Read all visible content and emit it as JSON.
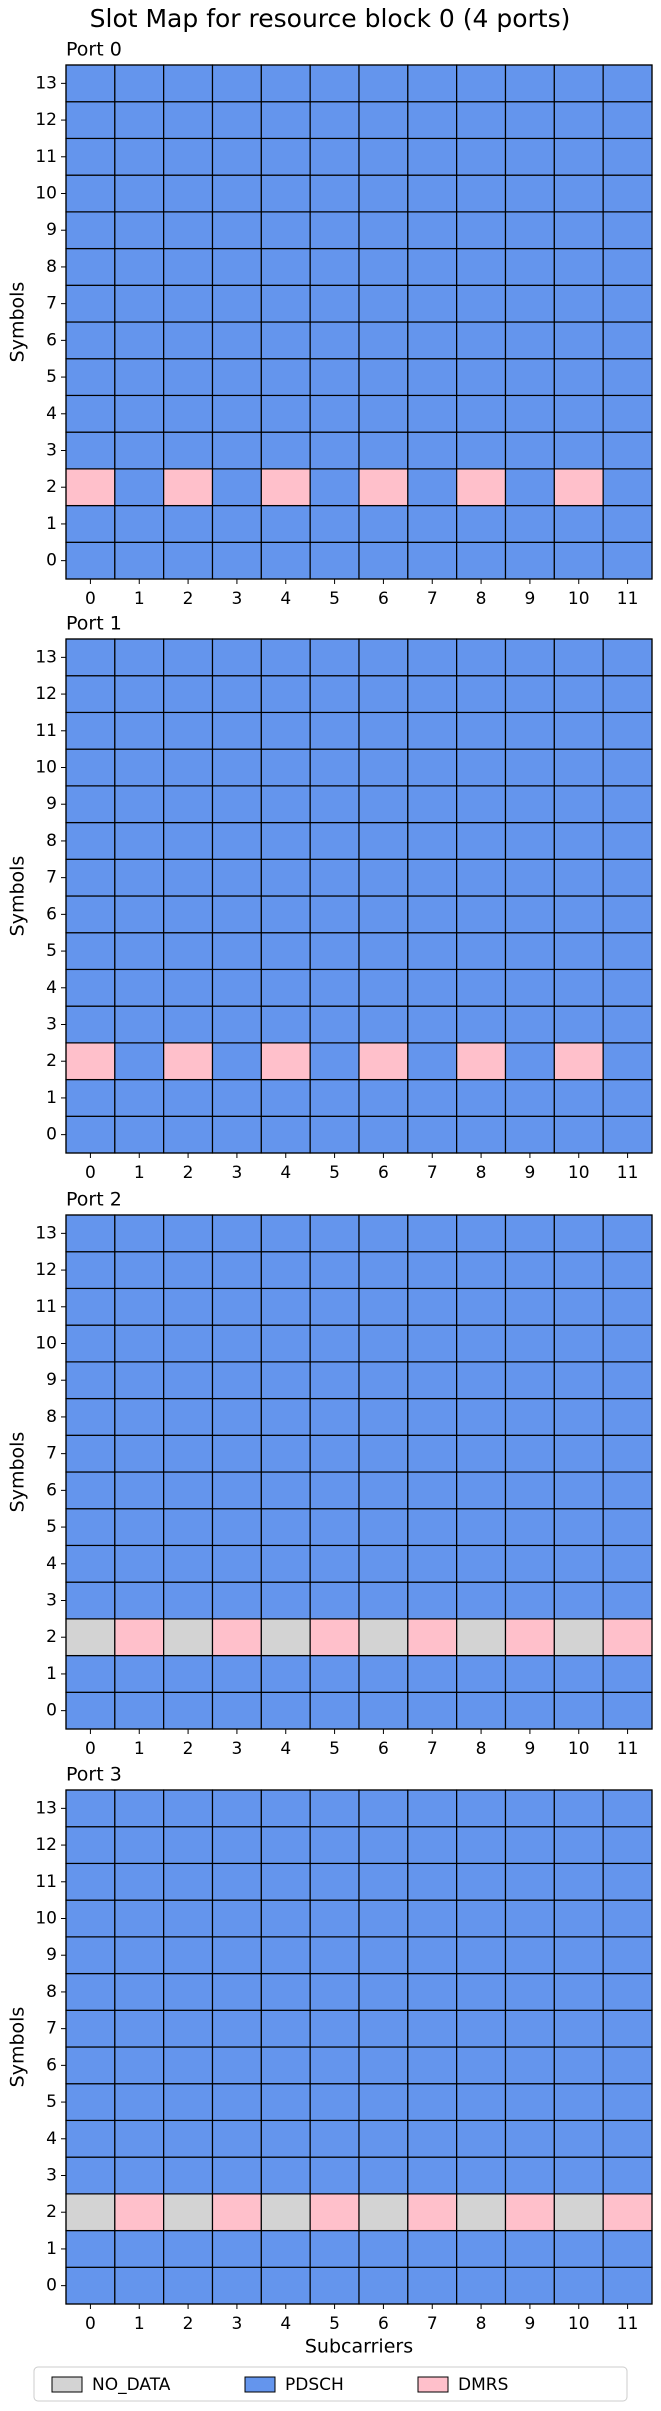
{
  "chart_data": {
    "type": "grid",
    "title": "Slot Map for resource block 0 (4 ports)",
    "xlabel": "Subcarriers",
    "ylabel": "Symbols",
    "xlim": [
      -0.5,
      11.5
    ],
    "ylim": [
      -0.5,
      13.5
    ],
    "xticks": [
      0,
      1,
      2,
      3,
      4,
      5,
      6,
      7,
      8,
      9,
      10,
      11
    ],
    "yticks": [
      0,
      1,
      2,
      3,
      4,
      5,
      6,
      7,
      8,
      9,
      10,
      11,
      12,
      13
    ],
    "legend_position": "lower center",
    "legend": [
      {
        "name": "NO_DATA",
        "color": "#d3d3d3"
      },
      {
        "name": "PDSCH",
        "color": "#6495ed"
      },
      {
        "name": "DMRS",
        "color": "#ffc0cb"
      }
    ],
    "panels": [
      {
        "title": "Port 0",
        "cells": [
          [
            1,
            1,
            1,
            1,
            1,
            1,
            1,
            1,
            1,
            1,
            1,
            1
          ],
          [
            1,
            1,
            1,
            1,
            1,
            1,
            1,
            1,
            1,
            1,
            1,
            1
          ],
          [
            2,
            1,
            2,
            1,
            2,
            1,
            2,
            1,
            2,
            1,
            2,
            1
          ],
          [
            1,
            1,
            1,
            1,
            1,
            1,
            1,
            1,
            1,
            1,
            1,
            1
          ],
          [
            1,
            1,
            1,
            1,
            1,
            1,
            1,
            1,
            1,
            1,
            1,
            1
          ],
          [
            1,
            1,
            1,
            1,
            1,
            1,
            1,
            1,
            1,
            1,
            1,
            1
          ],
          [
            1,
            1,
            1,
            1,
            1,
            1,
            1,
            1,
            1,
            1,
            1,
            1
          ],
          [
            1,
            1,
            1,
            1,
            1,
            1,
            1,
            1,
            1,
            1,
            1,
            1
          ],
          [
            1,
            1,
            1,
            1,
            1,
            1,
            1,
            1,
            1,
            1,
            1,
            1
          ],
          [
            1,
            1,
            1,
            1,
            1,
            1,
            1,
            1,
            1,
            1,
            1,
            1
          ],
          [
            1,
            1,
            1,
            1,
            1,
            1,
            1,
            1,
            1,
            1,
            1,
            1
          ],
          [
            1,
            1,
            1,
            1,
            1,
            1,
            1,
            1,
            1,
            1,
            1,
            1
          ],
          [
            1,
            1,
            1,
            1,
            1,
            1,
            1,
            1,
            1,
            1,
            1,
            1
          ],
          [
            1,
            1,
            1,
            1,
            1,
            1,
            1,
            1,
            1,
            1,
            1,
            1
          ]
        ]
      },
      {
        "title": "Port 1",
        "cells": [
          [
            1,
            1,
            1,
            1,
            1,
            1,
            1,
            1,
            1,
            1,
            1,
            1
          ],
          [
            1,
            1,
            1,
            1,
            1,
            1,
            1,
            1,
            1,
            1,
            1,
            1
          ],
          [
            2,
            1,
            2,
            1,
            2,
            1,
            2,
            1,
            2,
            1,
            2,
            1
          ],
          [
            1,
            1,
            1,
            1,
            1,
            1,
            1,
            1,
            1,
            1,
            1,
            1
          ],
          [
            1,
            1,
            1,
            1,
            1,
            1,
            1,
            1,
            1,
            1,
            1,
            1
          ],
          [
            1,
            1,
            1,
            1,
            1,
            1,
            1,
            1,
            1,
            1,
            1,
            1
          ],
          [
            1,
            1,
            1,
            1,
            1,
            1,
            1,
            1,
            1,
            1,
            1,
            1
          ],
          [
            1,
            1,
            1,
            1,
            1,
            1,
            1,
            1,
            1,
            1,
            1,
            1
          ],
          [
            1,
            1,
            1,
            1,
            1,
            1,
            1,
            1,
            1,
            1,
            1,
            1
          ],
          [
            1,
            1,
            1,
            1,
            1,
            1,
            1,
            1,
            1,
            1,
            1,
            1
          ],
          [
            1,
            1,
            1,
            1,
            1,
            1,
            1,
            1,
            1,
            1,
            1,
            1
          ],
          [
            1,
            1,
            1,
            1,
            1,
            1,
            1,
            1,
            1,
            1,
            1,
            1
          ],
          [
            1,
            1,
            1,
            1,
            1,
            1,
            1,
            1,
            1,
            1,
            1,
            1
          ],
          [
            1,
            1,
            1,
            1,
            1,
            1,
            1,
            1,
            1,
            1,
            1,
            1
          ]
        ]
      },
      {
        "title": "Port 2",
        "cells": [
          [
            1,
            1,
            1,
            1,
            1,
            1,
            1,
            1,
            1,
            1,
            1,
            1
          ],
          [
            1,
            1,
            1,
            1,
            1,
            1,
            1,
            1,
            1,
            1,
            1,
            1
          ],
          [
            0,
            2,
            0,
            2,
            0,
            2,
            0,
            2,
            0,
            2,
            0,
            2
          ],
          [
            1,
            1,
            1,
            1,
            1,
            1,
            1,
            1,
            1,
            1,
            1,
            1
          ],
          [
            1,
            1,
            1,
            1,
            1,
            1,
            1,
            1,
            1,
            1,
            1,
            1
          ],
          [
            1,
            1,
            1,
            1,
            1,
            1,
            1,
            1,
            1,
            1,
            1,
            1
          ],
          [
            1,
            1,
            1,
            1,
            1,
            1,
            1,
            1,
            1,
            1,
            1,
            1
          ],
          [
            1,
            1,
            1,
            1,
            1,
            1,
            1,
            1,
            1,
            1,
            1,
            1
          ],
          [
            1,
            1,
            1,
            1,
            1,
            1,
            1,
            1,
            1,
            1,
            1,
            1
          ],
          [
            1,
            1,
            1,
            1,
            1,
            1,
            1,
            1,
            1,
            1,
            1,
            1
          ],
          [
            1,
            1,
            1,
            1,
            1,
            1,
            1,
            1,
            1,
            1,
            1,
            1
          ],
          [
            1,
            1,
            1,
            1,
            1,
            1,
            1,
            1,
            1,
            1,
            1,
            1
          ],
          [
            1,
            1,
            1,
            1,
            1,
            1,
            1,
            1,
            1,
            1,
            1,
            1
          ],
          [
            1,
            1,
            1,
            1,
            1,
            1,
            1,
            1,
            1,
            1,
            1,
            1
          ]
        ]
      },
      {
        "title": "Port 3",
        "cells": [
          [
            1,
            1,
            1,
            1,
            1,
            1,
            1,
            1,
            1,
            1,
            1,
            1
          ],
          [
            1,
            1,
            1,
            1,
            1,
            1,
            1,
            1,
            1,
            1,
            1,
            1
          ],
          [
            0,
            2,
            0,
            2,
            0,
            2,
            0,
            2,
            0,
            2,
            0,
            2
          ],
          [
            1,
            1,
            1,
            1,
            1,
            1,
            1,
            1,
            1,
            1,
            1,
            1
          ],
          [
            1,
            1,
            1,
            1,
            1,
            1,
            1,
            1,
            1,
            1,
            1,
            1
          ],
          [
            1,
            1,
            1,
            1,
            1,
            1,
            1,
            1,
            1,
            1,
            1,
            1
          ],
          [
            1,
            1,
            1,
            1,
            1,
            1,
            1,
            1,
            1,
            1,
            1,
            1
          ],
          [
            1,
            1,
            1,
            1,
            1,
            1,
            1,
            1,
            1,
            1,
            1,
            1
          ],
          [
            1,
            1,
            1,
            1,
            1,
            1,
            1,
            1,
            1,
            1,
            1,
            1
          ],
          [
            1,
            1,
            1,
            1,
            1,
            1,
            1,
            1,
            1,
            1,
            1,
            1
          ],
          [
            1,
            1,
            1,
            1,
            1,
            1,
            1,
            1,
            1,
            1,
            1,
            1
          ],
          [
            1,
            1,
            1,
            1,
            1,
            1,
            1,
            1,
            1,
            1,
            1,
            1
          ],
          [
            1,
            1,
            1,
            1,
            1,
            1,
            1,
            1,
            1,
            1,
            1,
            1
          ],
          [
            1,
            1,
            1,
            1,
            1,
            1,
            1,
            1,
            1,
            1,
            1,
            1
          ]
        ]
      }
    ]
  }
}
